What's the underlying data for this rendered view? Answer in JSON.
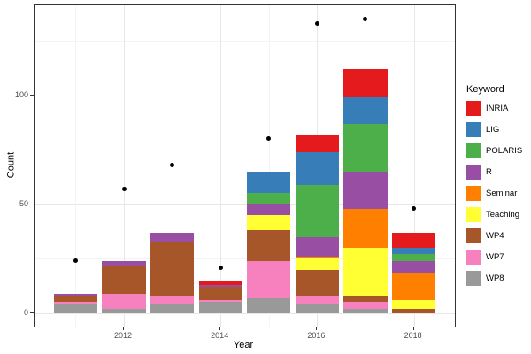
{
  "chart_data": {
    "type": "bar",
    "subtype": "stacked-bars-with-points",
    "title": "",
    "xlabel": "Year",
    "ylabel": "Count",
    "x": [
      2011,
      2012,
      2013,
      2014,
      2015,
      2016,
      2017,
      2018
    ],
    "series": [
      {
        "name": "INRIA",
        "color": "#e41a1c",
        "values": [
          0,
          0,
          0,
          2,
          0,
          8,
          13,
          7
        ]
      },
      {
        "name": "LIG",
        "color": "#377eb8",
        "values": [
          0,
          0,
          0,
          0,
          10,
          15,
          12,
          3
        ]
      },
      {
        "name": "POLARIS",
        "color": "#4daf4a",
        "values": [
          0,
          0,
          0,
          0,
          5,
          24,
          22,
          3
        ]
      },
      {
        "name": "R",
        "color": "#984ea3",
        "values": [
          1,
          2,
          4,
          1,
          5,
          9,
          17,
          6
        ]
      },
      {
        "name": "Seminar",
        "color": "#ff7f00",
        "values": [
          0,
          0,
          0,
          0,
          0,
          1,
          18,
          12
        ]
      },
      {
        "name": "Teaching",
        "color": "#ffff33",
        "values": [
          0,
          0,
          0,
          0,
          7,
          5,
          22,
          4
        ]
      },
      {
        "name": "WP4",
        "color": "#a65628",
        "values": [
          3,
          13,
          25,
          6,
          14,
          12,
          3,
          2
        ]
      },
      {
        "name": "WP7",
        "color": "#f781bf",
        "values": [
          1,
          7,
          4,
          1,
          17,
          4,
          3,
          0
        ]
      },
      {
        "name": "WP8",
        "color": "#999999",
        "values": [
          4,
          2,
          4,
          5,
          7,
          4,
          2,
          0
        ]
      }
    ],
    "stack_totals": [
      9,
      24,
      37,
      15,
      65,
      82,
      112,
      37
    ],
    "stack_order": "first-series-on-top",
    "points": {
      "values": [
        24,
        57,
        68,
        21,
        80,
        133,
        135,
        48
      ],
      "color": "#000000"
    },
    "x_tick_values": [
      2012,
      2014,
      2016,
      2018
    ],
    "x_tick_labels": [
      "2012",
      "2014",
      "2016",
      "2018"
    ],
    "x_minor_gridlines": [
      2011,
      2013,
      2015,
      2017
    ],
    "y_tick_values": [
      0,
      50,
      100
    ],
    "y_tick_labels": [
      "0",
      "50",
      "100"
    ],
    "y_minor_gridlines": [
      25,
      75,
      125
    ],
    "xlim": [
      2010.15,
      2018.85
    ],
    "ylim": [
      -6.2,
      141.3
    ],
    "bar_width_fraction": 0.9,
    "grid": true,
    "legend_position": "right"
  },
  "legend": {
    "title": "Keyword"
  },
  "theme": {
    "panel_background": "#ffffff",
    "panel_border": "#333333",
    "grid_major_color": "#e7e7e7",
    "grid_minor_color": "#f4f4f4",
    "tick_color": "#333333",
    "tick_label_color": "#4d4d4d",
    "axis_title_color": "#000000"
  }
}
